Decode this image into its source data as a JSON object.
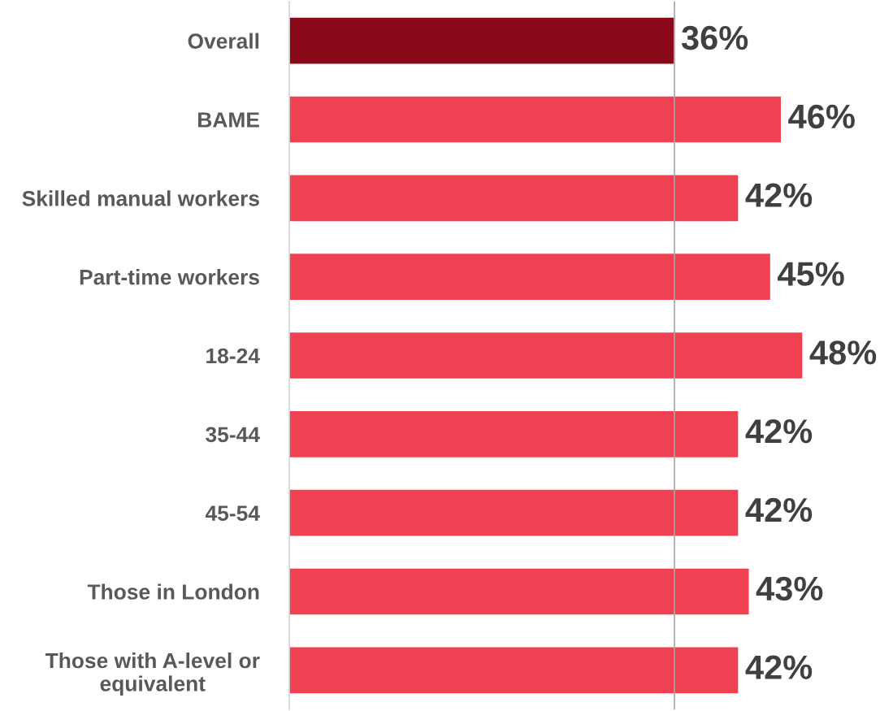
{
  "chart_data": {
    "type": "bar",
    "orientation": "horizontal",
    "categories": [
      "Overall",
      "BAME",
      "Skilled manual workers",
      "Part-time workers",
      "18-24",
      "35-44",
      "45-54",
      "Those in London",
      "Those with A-level or\nequivalent"
    ],
    "values": [
      36,
      46,
      42,
      45,
      48,
      42,
      42,
      43,
      42
    ],
    "colors": [
      "#8b0a1a",
      "#f04152",
      "#f04152",
      "#f04152",
      "#f04152",
      "#f04152",
      "#f04152",
      "#f04152",
      "#f04152"
    ],
    "value_labels": [
      "36%",
      "46%",
      "42%",
      "45%",
      "48%",
      "42%",
      "42%",
      "43%",
      "42%"
    ],
    "ref_lines": [
      {
        "axis": "x",
        "value": 36,
        "color": "#a6a6a6"
      }
    ],
    "grid": false,
    "legend": false
  }
}
